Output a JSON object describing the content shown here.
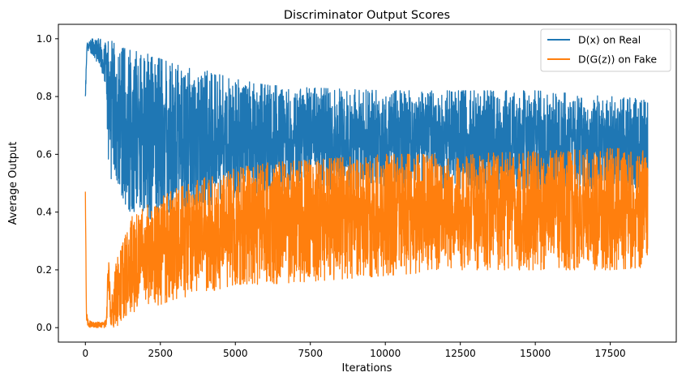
{
  "chart_data": {
    "type": "line",
    "title": "Discriminator Output Scores",
    "xlabel": "Iterations",
    "ylabel": "Average Output",
    "xlim": [
      -900,
      19700
    ],
    "ylim": [
      -0.05,
      1.05
    ],
    "x_ticks": [
      0,
      2500,
      5000,
      7500,
      10000,
      12500,
      15000,
      17500
    ],
    "y_ticks": [
      0.0,
      0.2,
      0.4,
      0.6,
      0.8,
      1.0
    ],
    "x_tick_labels": [
      "0",
      "2500",
      "5000",
      "7500",
      "10000",
      "12500",
      "15000",
      "17500"
    ],
    "y_tick_labels": [
      "0.0",
      "0.2",
      "0.4",
      "0.6",
      "0.8",
      "1.0"
    ],
    "grid": false,
    "legend_position": "top-right",
    "series": [
      {
        "name": "D(x) on Real",
        "color": "#1f77b4",
        "x_range": [
          0,
          18750
        ],
        "envelope": {
          "x": [
            0,
            50,
            100,
            200,
            500,
            700,
            800,
            900,
            1000,
            1200,
            1500,
            2000,
            2500,
            3000,
            4000,
            5000,
            6000,
            7500,
            10000,
            12500,
            15000,
            17500,
            18750
          ],
          "upper": [
            0.86,
            0.99,
            1.0,
            1.0,
            1.0,
            1.0,
            1.0,
            0.99,
            0.98,
            0.97,
            0.96,
            0.95,
            0.93,
            0.91,
            0.89,
            0.86,
            0.84,
            0.83,
            0.82,
            0.82,
            0.82,
            0.8,
            0.79
          ],
          "lower": [
            0.78,
            0.93,
            0.95,
            0.95,
            0.9,
            0.8,
            0.45,
            0.55,
            0.5,
            0.45,
            0.4,
            0.38,
            0.37,
            0.38,
            0.42,
            0.45,
            0.47,
            0.48,
            0.48,
            0.48,
            0.48,
            0.48,
            0.48
          ]
        }
      },
      {
        "name": "D(G(z)) on Fake",
        "color": "#ff7f0e",
        "x_range": [
          0,
          18750
        ],
        "envelope": {
          "x": [
            0,
            30,
            80,
            200,
            500,
            700,
            750,
            850,
            1000,
            1200,
            1500,
            2000,
            2500,
            3000,
            4000,
            5000,
            6000,
            7500,
            10000,
            12500,
            15000,
            17500,
            18750
          ],
          "upper": [
            0.53,
            0.1,
            0.04,
            0.02,
            0.02,
            0.03,
            0.3,
            0.08,
            0.22,
            0.28,
            0.38,
            0.42,
            0.45,
            0.48,
            0.52,
            0.55,
            0.57,
            0.58,
            0.6,
            0.6,
            0.61,
            0.62,
            0.62
          ],
          "lower": [
            0.45,
            0.03,
            0.0,
            0.0,
            0.0,
            0.0,
            0.05,
            0.0,
            0.0,
            0.02,
            0.05,
            0.07,
            0.08,
            0.1,
            0.12,
            0.15,
            0.15,
            0.16,
            0.18,
            0.2,
            0.2,
            0.2,
            0.21
          ]
        }
      }
    ]
  }
}
